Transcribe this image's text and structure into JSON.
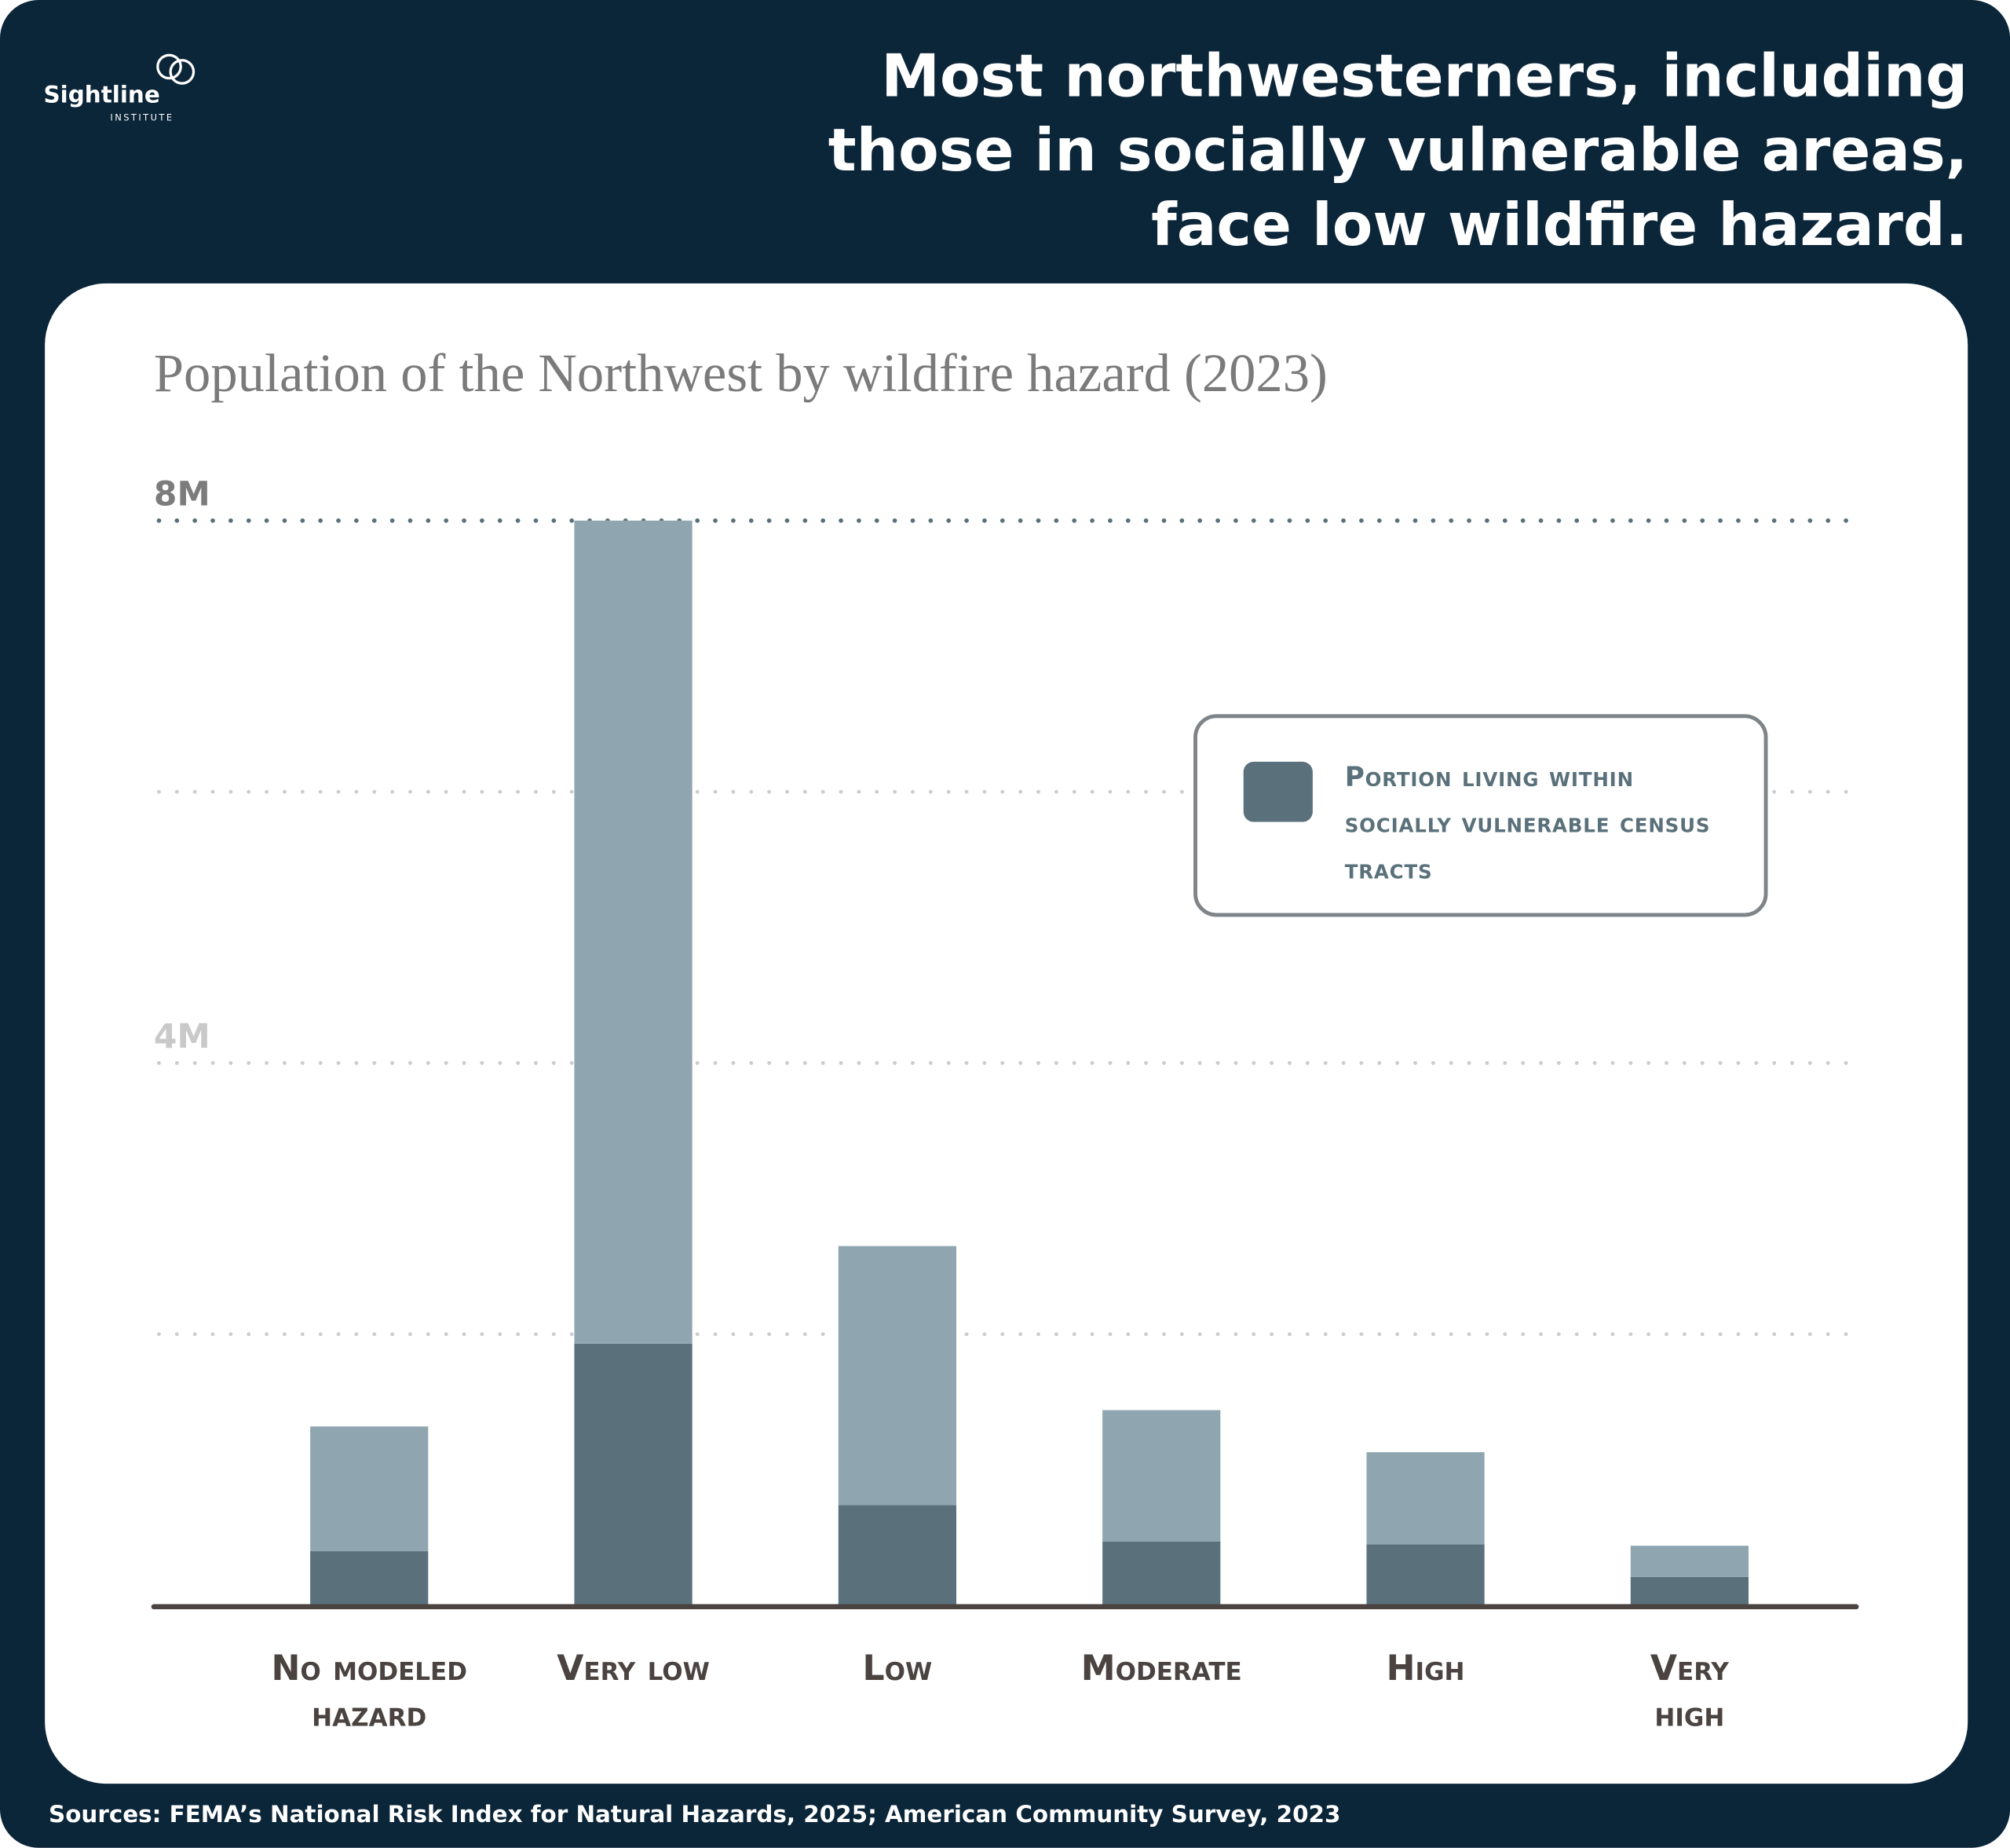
{
  "brand": {
    "name": "Sightline",
    "subname": "INSTITUTE"
  },
  "headline": "Most northwesterners, including those in socially vulnerable areas, face low wildfire hazard.",
  "source": "Sources: FEMA’s National Risk Index for Natural Hazards, 2025; American Community Survey, 2023",
  "chart_data": {
    "type": "stacked_bar",
    "title": "Population of the Northwest by wildfire hazard (2023)",
    "categories": [
      "No modeled hazard",
      "Very low",
      "Low",
      "Moderate",
      "High",
      "Very high"
    ],
    "series": [
      {
        "name": "Portion living within socially vulnerable census tracts",
        "color": "#5a717b",
        "values": [
          400000,
          1930000,
          740000,
          470000,
          450000,
          210000
        ]
      },
      {
        "color": "#8fa6b1",
        "values": [
          920000,
          6070000,
          1910000,
          970000,
          680000,
          230000
        ]
      }
    ],
    "ylim": [
      0,
      8000000
    ],
    "yticks": [
      {
        "value": 2000000,
        "label": null
      },
      {
        "value": 4000000,
        "label": "4M"
      },
      {
        "value": 6000000,
        "label": null
      },
      {
        "value": 8000000,
        "label": "8M"
      }
    ],
    "grid": true
  }
}
